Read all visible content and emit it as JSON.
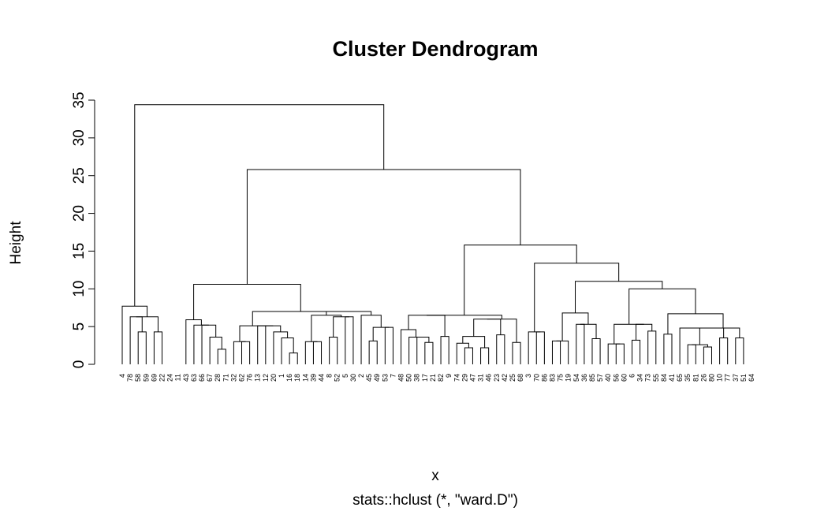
{
  "chart_data": {
    "type": "dendrogram",
    "title": "Cluster Dendrogram",
    "xlabel": "x",
    "ylabel": "Height",
    "subtitle": "stats::hclust (*, \"ward.D\")",
    "ylim": [
      0,
      35
    ],
    "yticks": [
      0,
      5,
      10,
      15,
      20,
      25,
      30,
      35
    ],
    "leaf_order": [
      "4",
      "78",
      "58",
      "59",
      "69",
      "22",
      "24",
      "11",
      "43",
      "63",
      "66",
      "67",
      "28",
      "71",
      "32",
      "62",
      "76",
      "13",
      "12",
      "20",
      "1",
      "16",
      "18",
      "14",
      "39",
      "44",
      "8",
      "52",
      "5",
      "30",
      "2",
      "45",
      "49",
      "53",
      "7",
      "48",
      "50",
      "38",
      "17",
      "21",
      "82",
      "9",
      "74",
      "29",
      "47",
      "31",
      "46",
      "23",
      "42",
      "25",
      "68",
      "3",
      "70",
      "86",
      "83",
      "75",
      "19",
      "54",
      "36",
      "85",
      "57",
      "40",
      "56",
      "60",
      "6",
      "34",
      "73",
      "55",
      "84",
      "41",
      "65",
      "35",
      "81",
      "26",
      "80",
      "10",
      "77",
      "37",
      "51",
      "64"
    ],
    "merges": [
      {
        "left": "leaf:2",
        "right": "leaf:3",
        "height": 4.3
      },
      {
        "left": "leaf:4",
        "right": "leaf:5",
        "height": 4.3
      },
      {
        "left": "leaf:1",
        "right": "m:0",
        "height": 6.3
      },
      {
        "left": "m:2",
        "right": "m:1",
        "height": 6.3
      },
      {
        "left": "leaf:0",
        "right": "m:3",
        "height": 7.7
      },
      {
        "left": "leaf:12",
        "right": "leaf:13",
        "height": 2.0
      },
      {
        "left": "leaf:11",
        "right": "m:5",
        "height": 3.6
      },
      {
        "left": "leaf:10",
        "right": "m:6",
        "height": 5.2
      },
      {
        "left": "leaf:9",
        "right": "m:7",
        "height": 5.2
      },
      {
        "left": "leaf:8",
        "right": "m:8",
        "height": 5.9
      },
      {
        "left": "leaf:15",
        "right": "leaf:16",
        "height": 3.0
      },
      {
        "left": "leaf:14",
        "right": "m:10",
        "height": 3.0
      },
      {
        "left": "leaf:21",
        "right": "leaf:22",
        "height": 1.5
      },
      {
        "left": "leaf:20",
        "right": "m:12",
        "height": 3.5
      },
      {
        "left": "leaf:19",
        "right": "m:13",
        "height": 4.3
      },
      {
        "left": "leaf:18",
        "right": "m:14",
        "height": 5.1
      },
      {
        "left": "leaf:17",
        "right": "m:15",
        "height": 5.1
      },
      {
        "left": "m:11",
        "right": "m:16",
        "height": 5.1
      },
      {
        "left": "leaf:24",
        "right": "leaf:25",
        "height": 3.0
      },
      {
        "left": "leaf:23",
        "right": "m:18",
        "height": 3.0
      },
      {
        "left": "leaf:26",
        "right": "leaf:27",
        "height": 3.6
      },
      {
        "left": "leaf:28",
        "right": "leaf:29",
        "height": 6.3
      },
      {
        "left": "m:20",
        "right": "m:21",
        "height": 6.3
      },
      {
        "left": "m:19",
        "right": "m:22",
        "height": 6.5
      },
      {
        "left": "leaf:31",
        "right": "leaf:32",
        "height": 3.1
      },
      {
        "left": "leaf:33",
        "right": "leaf:34",
        "height": 4.9
      },
      {
        "left": "m:24",
        "right": "m:25",
        "height": 4.9
      },
      {
        "left": "leaf:30",
        "right": "m:26",
        "height": 6.5
      },
      {
        "left": "m:23",
        "right": "m:27",
        "height": 7.0
      },
      {
        "left": "m:17",
        "right": "m:28",
        "height": 7.0
      },
      {
        "left": "m:9",
        "right": "m:29",
        "height": 10.6
      },
      {
        "left": "leaf:38",
        "right": "leaf:39",
        "height": 2.9
      },
      {
        "left": "leaf:37",
        "right": "m:31",
        "height": 3.6
      },
      {
        "left": "leaf:36",
        "right": "m:32",
        "height": 3.6
      },
      {
        "left": "leaf:35",
        "right": "m:33",
        "height": 4.6
      },
      {
        "left": "leaf:40",
        "right": "leaf:41",
        "height": 3.7
      },
      {
        "left": "m:34",
        "right": "m:35",
        "height": 6.5
      },
      {
        "left": "leaf:43",
        "right": "leaf:44",
        "height": 2.2
      },
      {
        "left": "leaf:42",
        "right": "m:37",
        "height": 2.8
      },
      {
        "left": "leaf:45",
        "right": "leaf:46",
        "height": 2.2
      },
      {
        "left": "m:38",
        "right": "m:39",
        "height": 3.7
      },
      {
        "left": "leaf:47",
        "right": "leaf:48",
        "height": 3.9
      },
      {
        "left": "m:40",
        "right": "m:41",
        "height": 6.0
      },
      {
        "left": "leaf:49",
        "right": "leaf:50",
        "height": 2.9
      },
      {
        "left": "m:42",
        "right": "m:43",
        "height": 6.0
      },
      {
        "left": "m:36",
        "right": "m:44",
        "height": 6.5
      },
      {
        "left": "leaf:52",
        "right": "leaf:53",
        "height": 4.3
      },
      {
        "left": "leaf:51",
        "right": "m:46",
        "height": 4.3
      },
      {
        "left": "leaf:54",
        "right": "leaf:55",
        "height": 3.1
      },
      {
        "left": "m:48",
        "right": "leaf:56",
        "height": 3.1
      },
      {
        "left": "leaf:57",
        "right": "leaf:58",
        "height": 5.3
      },
      {
        "left": "leaf:59",
        "right": "leaf:60",
        "height": 3.4
      },
      {
        "left": "m:50",
        "right": "m:51",
        "height": 5.3
      },
      {
        "left": "m:49",
        "right": "m:52",
        "height": 6.8
      },
      {
        "left": "leaf:62",
        "right": "leaf:63",
        "height": 2.7
      },
      {
        "left": "leaf:61",
        "right": "m:54",
        "height": 2.7
      },
      {
        "left": "leaf:64",
        "right": "leaf:65",
        "height": 3.2
      },
      {
        "left": "leaf:66",
        "right": "leaf:67",
        "height": 4.4
      },
      {
        "left": "m:56",
        "right": "m:57",
        "height": 5.3
      },
      {
        "left": "m:55",
        "right": "m:58",
        "height": 5.3
      },
      {
        "left": "leaf:68",
        "right": "leaf:69",
        "height": 4.0
      },
      {
        "left": "leaf:71",
        "right": "leaf:72",
        "height": 2.6
      },
      {
        "left": "leaf:73",
        "right": "leaf:74",
        "height": 2.3
      },
      {
        "left": "m:61",
        "right": "m:62",
        "height": 2.6
      },
      {
        "left": "leaf:70",
        "right": "m:63",
        "height": 4.8
      },
      {
        "left": "leaf:75",
        "right": "leaf:76",
        "height": 3.5
      },
      {
        "left": "leaf:77",
        "right": "leaf:78",
        "height": 3.5
      },
      {
        "left": "m:64",
        "right": "m:65",
        "height": 4.8
      },
      {
        "left": "m:67",
        "right": "m:66",
        "height": 4.8
      },
      {
        "left": "m:60",
        "right": "m:68",
        "height": 6.7
      },
      {
        "left": "m:59",
        "right": "m:69",
        "height": 10.0
      },
      {
        "left": "m:53",
        "right": "m:70",
        "height": 11.0
      },
      {
        "left": "m:47",
        "right": "m:71",
        "height": 13.4
      },
      {
        "left": "m:45",
        "right": "m:72",
        "height": 15.8
      },
      {
        "left": "m:30",
        "right": "m:73",
        "height": 25.8
      },
      {
        "left": "m:4",
        "right": "m:74",
        "height": 34.4
      }
    ]
  }
}
